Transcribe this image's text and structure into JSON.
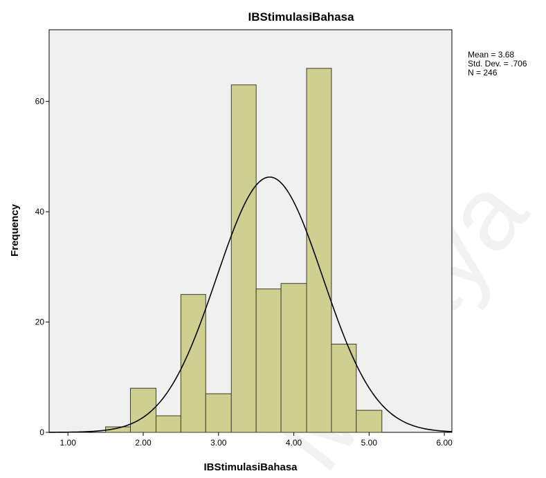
{
  "chart_data": {
    "type": "bar",
    "title": "IBStimulasiBahasa",
    "xlabel": "IBStimulasiBahasa",
    "ylabel": "Frequency",
    "xlim": [
      0.75,
      6.1
    ],
    "ylim": [
      0,
      73
    ],
    "xticks": [
      1.0,
      2.0,
      3.0,
      4.0,
      5.0,
      6.0
    ],
    "xtick_labels": [
      "1.00",
      "2.00",
      "3.00",
      "4.00",
      "5.00",
      "6.00"
    ],
    "yticks": [
      0,
      20,
      40,
      60
    ],
    "ytick_labels": [
      "0",
      "20",
      "40",
      "60"
    ],
    "bins": [
      {
        "start": 1.5,
        "end": 1.83,
        "count": 1
      },
      {
        "start": 1.83,
        "end": 2.17,
        "count": 8
      },
      {
        "start": 2.17,
        "end": 2.5,
        "count": 3
      },
      {
        "start": 2.5,
        "end": 2.83,
        "count": 25
      },
      {
        "start": 2.83,
        "end": 3.17,
        "count": 7
      },
      {
        "start": 3.17,
        "end": 3.5,
        "count": 63
      },
      {
        "start": 3.5,
        "end": 3.83,
        "count": 26
      },
      {
        "start": 3.83,
        "end": 4.17,
        "count": 27
      },
      {
        "start": 4.17,
        "end": 4.5,
        "count": 66
      },
      {
        "start": 4.5,
        "end": 4.83,
        "count": 16
      },
      {
        "start": 4.83,
        "end": 5.17,
        "count": 4
      }
    ],
    "normal_curve": {
      "mean": 3.68,
      "sd": 0.706,
      "n": 246,
      "bin_width": 0.333
    },
    "stats_lines": [
      "Mean = 3.68",
      "Std. Dev. = .706",
      "N = 246"
    ],
    "grid": false,
    "legend": "none",
    "colors": {
      "bar_fill": "#cfcf8f",
      "bar_stroke": "#3b3b2a",
      "plot_bg": "#f0f0f0",
      "curve": "#000000"
    }
  },
  "watermark_text": "Malaya"
}
